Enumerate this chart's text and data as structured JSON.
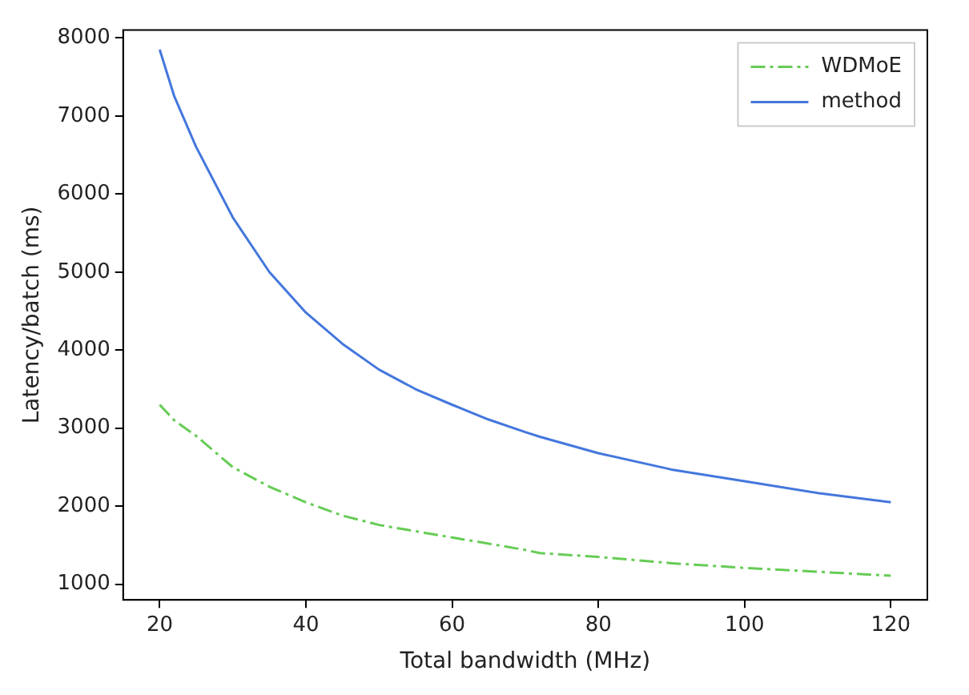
{
  "chart_data": {
    "type": "line",
    "xlabel": "Total bandwidth (MHz)",
    "ylabel": "Latency/batch (ms)",
    "x": [
      20,
      22,
      25,
      30,
      35,
      40,
      45,
      50,
      55,
      60,
      65,
      70,
      72,
      80,
      90,
      100,
      110,
      120
    ],
    "series": [
      {
        "name": "WDMoE",
        "color": "#66cc55",
        "line_style": "dashed",
        "values": [
          3300,
          3100,
          2900,
          2500,
          2250,
          2050,
          1880,
          1760,
          1680,
          1600,
          1520,
          1440,
          1400,
          1350,
          1270,
          1210,
          1160,
          1110
        ]
      },
      {
        "name": "method",
        "color": "#4477dd",
        "line_style": "solid",
        "values": [
          7850,
          7250,
          6600,
          5700,
          5000,
          4480,
          4080,
          3750,
          3500,
          3300,
          3110,
          2950,
          2890,
          2680,
          2470,
          2320,
          2170,
          2050
        ]
      }
    ],
    "xlim": [
      15,
      125
    ],
    "ylim": [
      800,
      8100
    ],
    "xticks": [
      20,
      40,
      60,
      80,
      100,
      120
    ],
    "yticks": [
      1000,
      2000,
      3000,
      4000,
      5000,
      6000,
      7000,
      8000
    ],
    "grid": false,
    "legend": "top right",
    "marker": "none"
  }
}
